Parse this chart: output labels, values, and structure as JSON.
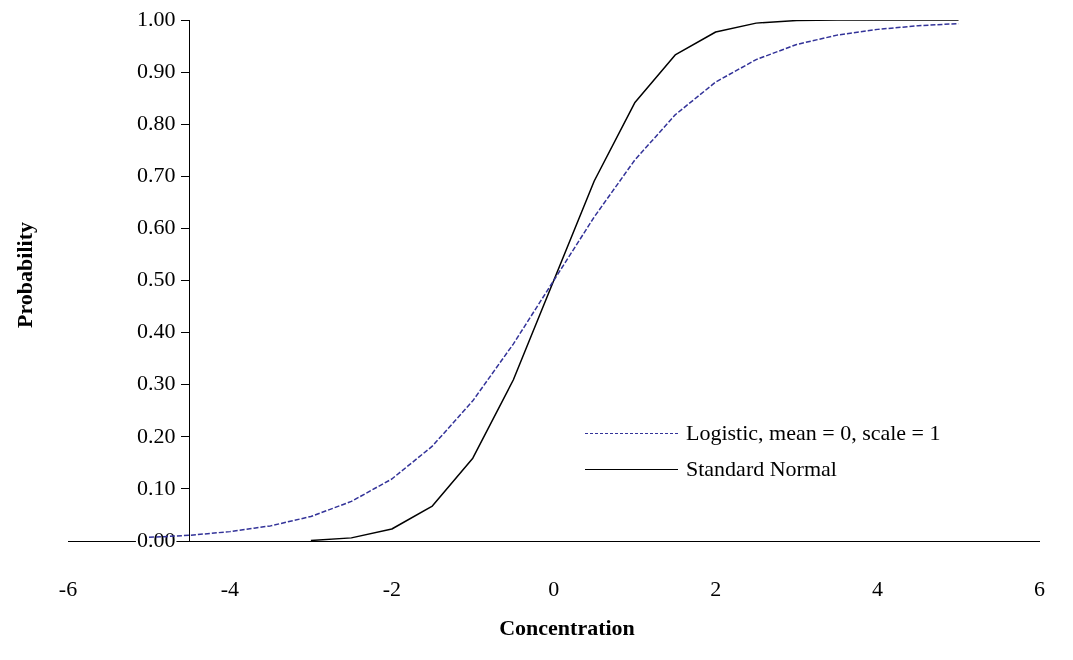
{
  "chart_data": {
    "type": "line",
    "xlabel": "Concentration",
    "ylabel": "Probability",
    "xlim": [
      -6,
      6
    ],
    "xticks": [
      -6,
      -4,
      -2,
      0,
      2,
      4,
      6
    ],
    "ylim": [
      0,
      1
    ],
    "yticks": [
      {
        "value": 0,
        "label": "0.00"
      },
      {
        "value": 0.1,
        "label": "0.10"
      },
      {
        "value": 0.2,
        "label": "0.20"
      },
      {
        "value": 0.3,
        "label": "0.30"
      },
      {
        "value": 0.4,
        "label": "0.40"
      },
      {
        "value": 0.5,
        "label": "0.50"
      },
      {
        "value": 0.6,
        "label": "0.60"
      },
      {
        "value": 0.7,
        "label": "0.70"
      },
      {
        "value": 0.8,
        "label": "0.80"
      },
      {
        "value": 0.9,
        "label": "0.90"
      },
      {
        "value": 1,
        "label": "1.00"
      }
    ],
    "legend": "bottom right",
    "marker": "none",
    "series": [
      {
        "name": "Logistic, mean = 0, scale = 1",
        "color": "#333399",
        "line_style": "dashed",
        "x": [
          -5,
          -4.5,
          -4,
          -3.5,
          -3,
          -2.5,
          -2,
          -1.5,
          -1,
          -0.5,
          0,
          0.5,
          1,
          1.5,
          2,
          2.5,
          3,
          3.5,
          4,
          4.5,
          5
        ],
        "values": [
          0.007,
          0.011,
          0.018,
          0.029,
          0.047,
          0.076,
          0.119,
          0.182,
          0.269,
          0.378,
          0.5,
          0.622,
          0.731,
          0.818,
          0.881,
          0.924,
          0.953,
          0.971,
          0.982,
          0.989,
          0.993
        ]
      },
      {
        "name": "Standard Normal",
        "color": "#000000",
        "line_style": "solid",
        "x": [
          -3,
          -2.5,
          -2,
          -1.5,
          -1,
          -0.5,
          0,
          0.5,
          1,
          1.5,
          2,
          2.5,
          3,
          3.5,
          4,
          4.5,
          5
        ],
        "values": [
          0.001,
          0.006,
          0.023,
          0.067,
          0.159,
          0.309,
          0.5,
          0.691,
          0.841,
          0.933,
          0.977,
          0.994,
          0.999,
          1,
          1,
          1,
          1
        ]
      }
    ]
  }
}
